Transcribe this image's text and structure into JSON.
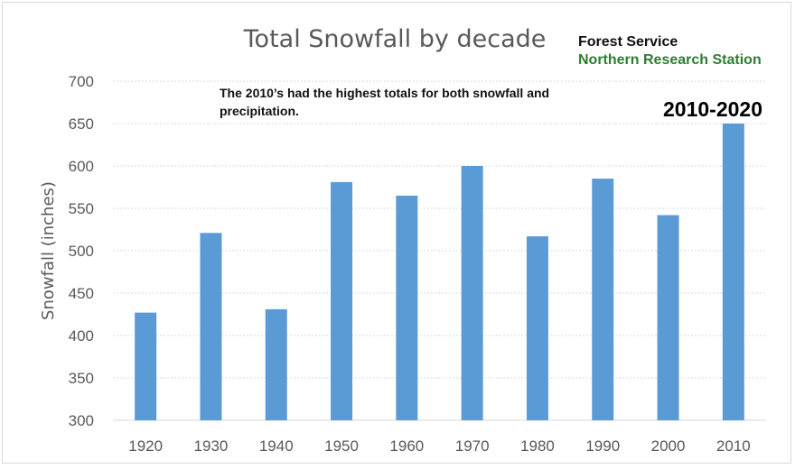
{
  "chart_data": {
    "type": "bar",
    "title": "Total Snowfall by decade",
    "ylabel": "Snowfall (inches)",
    "xlabel": "",
    "categories": [
      "1920",
      "1930",
      "1940",
      "1950",
      "1960",
      "1970",
      "1980",
      "1990",
      "2000",
      "2010"
    ],
    "values": [
      427,
      521,
      431,
      581,
      565,
      600,
      517,
      585,
      542,
      650
    ],
    "ylim": [
      300,
      700
    ],
    "yticks": [
      300,
      350,
      400,
      450,
      500,
      550,
      600,
      650,
      700
    ],
    "grid": true,
    "bar_color": "#5b9bd5",
    "annotations": {
      "note_line1": "The 2010’s had the highest totals for both snowfall and",
      "note_line2": "precipitation.",
      "callout": "2010-2020"
    }
  },
  "source": {
    "line1": "Forest Service",
    "line2": "Northern Research Station",
    "line2_color": "#2e7d32"
  }
}
